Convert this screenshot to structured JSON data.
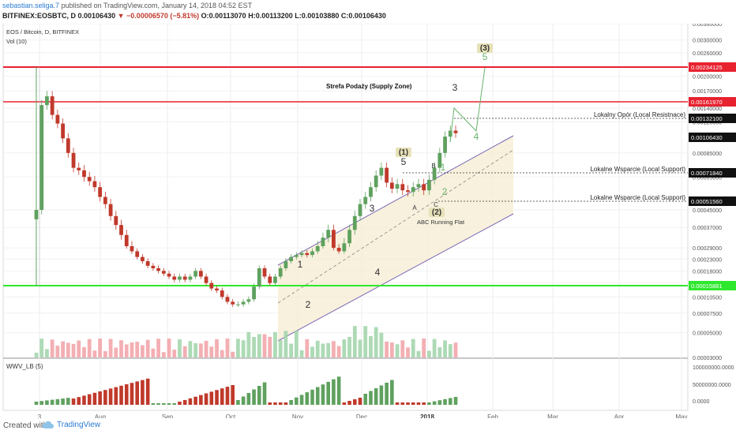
{
  "header": {
    "author": "sebastian.seliga.7",
    "published_text": "published on TradingView.com, January 14, 2018 04:52 EST",
    "ticker": "BITFINEX:EOSBTC, D",
    "last_price": "0.00106430",
    "change": "−0.00006570 (−5.81%)",
    "open": "O:0.00113070",
    "high": "H:0.00113200",
    "low": "L:0.00103880",
    "close": "C:0.00106430"
  },
  "legend": {
    "symbol_line": "EOS / Bitcoin, D, BITFINEX",
    "volume_label": "Vol (10)",
    "indicator_label": "WWV_LB (5)"
  },
  "colors": {
    "up": "#5fa15f",
    "down": "#c0392b",
    "red_line": "#e8212f",
    "green_line": "#2ee82e",
    "channel_line": "#7b68b5",
    "channel_fill": "#f6ecd2",
    "wave_line": "#67b36b"
  },
  "chart_data": {
    "type": "candlestick",
    "symbol": "EOS / Bitcoin",
    "x_ticks": [
      "3",
      "Aug",
      "Sep",
      "Oct",
      "Nov",
      "Dec",
      "2018",
      "Feb",
      "Mar",
      "Apr",
      "May"
    ],
    "y_ticks": [
      "0.00360000",
      "0.00300000",
      "0.00260000",
      "0.00200000",
      "0.00170000",
      "0.00140000",
      "0.00120000",
      "0.00085000",
      "0.00065000",
      "0.00045000",
      "0.00037000",
      "0.00029000",
      "0.00023000",
      "0.00018000",
      "0.00014000",
      "0.00010500",
      "0.00007500",
      "0.00005000",
      "0.00003000"
    ],
    "y_range": [
      3e-05,
      0.0036
    ],
    "price_markers": [
      {
        "value": "0.00234125",
        "color": "#e8212f"
      },
      {
        "value": "0.00161970",
        "color": "#e8212f"
      },
      {
        "value": "0.00132100",
        "color": "#222222"
      },
      {
        "value": "0.00106430",
        "color": "#222222"
      },
      {
        "value": "0.00071840",
        "color": "#222222"
      },
      {
        "value": "0.00051560",
        "color": "#222222"
      },
      {
        "value": "0.00015881",
        "color": "#2ee82e"
      }
    ],
    "levels": [
      {
        "label": "Lokalny Opór (Local Resistnace)"
      },
      {
        "label": "Lokalne Wsparcie (Local Support)"
      },
      {
        "label": "Lokalne Wsparcie (Local Support)"
      }
    ],
    "annotations": {
      "supply_zone": "Strefa Podaży (Supply Zone)",
      "abc_flat": "ABC Running Flat",
      "wave_labels": [
        "1",
        "2",
        "3",
        "4",
        "5",
        "(1)",
        "A",
        "B",
        "C",
        "(2)",
        "1",
        "2",
        "3",
        "4",
        "5",
        "(3)"
      ]
    },
    "indicator": {
      "name": "WWV_LB (5)",
      "y_ticks": [
        "100000000.0000",
        "50000000.0000",
        "0.0000"
      ]
    },
    "close_series": [
      0.00045,
      0.00145,
      0.0016,
      0.0013,
      0.00118,
      0.001,
      0.00085,
      0.00072,
      0.0007,
      0.00065,
      0.00062,
      0.00058,
      0.00052,
      0.00048,
      0.00042,
      0.00038,
      0.00034,
      0.0003,
      0.00027,
      0.00024,
      0.00022,
      0.0002,
      0.00019,
      0.00018,
      0.00017,
      0.00016,
      0.00015,
      0.00016,
      0.00015,
      0.00016,
      0.00018,
      0.00016,
      0.00014,
      0.000125,
      0.00012,
      0.000105,
      9.5e-05,
      9e-05,
      9e-05,
      9.5e-05,
      0.0001,
      0.00013,
      0.00019,
      0.00016,
      0.00014,
      0.00016,
      0.00019,
      0.00022,
      0.00024,
      0.00025,
      0.00026,
      0.00025,
      0.00027,
      0.0003,
      0.00033,
      0.00036,
      0.00029,
      0.00027,
      0.00031,
      0.00036,
      0.00042,
      0.00048,
      0.00052,
      0.00058,
      0.00066,
      0.00072,
      0.00061,
      0.00057,
      0.0006,
      0.00056,
      0.00055,
      0.00058,
      0.0006,
      0.00056,
      0.00063,
      0.00072,
      0.00085,
      0.00102,
      0.00109,
      0.00106
    ]
  }
}
